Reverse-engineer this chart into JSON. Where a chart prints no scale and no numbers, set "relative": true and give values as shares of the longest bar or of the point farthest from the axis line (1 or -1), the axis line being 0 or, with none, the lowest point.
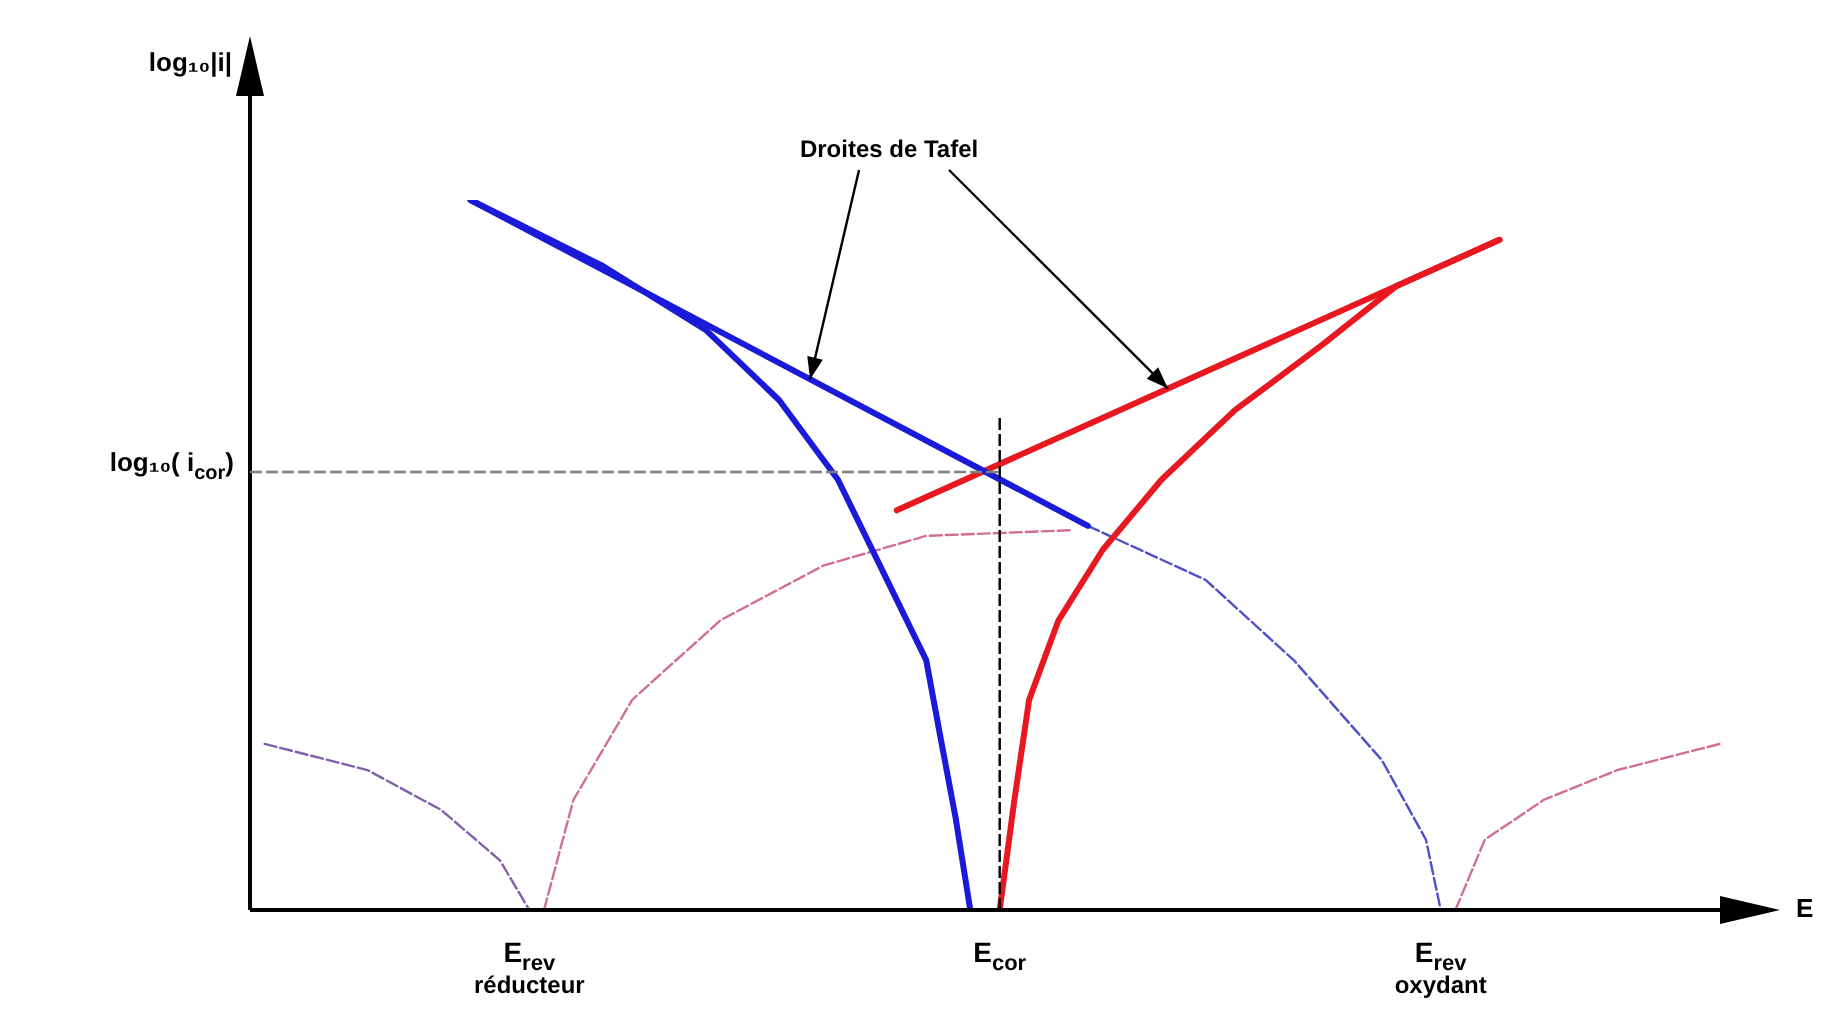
{
  "chart_data": {
    "type": "line",
    "relative": true,
    "categories": [
      null,
      null,
      null,
      null,
      null,
      null,
      null,
      null,
      null,
      null,
      null,
      null,
      null,
      null,
      null,
      null,
      null,
      null,
      null,
      "E$_{rev}$\nréducteur",
      null,
      null,
      null,
      null,
      null,
      null,
      null,
      null,
      null,
      null,
      null,
      null,
      null,
      null,
      null,
      null,
      null,
      null,
      null,
      null,
      null,
      null,
      null,
      null,
      null,
      null,
      null,
      null,
      null,
      null,
      null,
      "E$_{cor}$",
      null,
      null,
      null,
      null,
      null,
      null,
      null,
      null,
      null,
      null,
      null,
      null,
      null,
      null,
      null,
      null,
      null,
      null,
      null,
      null,
      null,
      null,
      null,
      null,
      null,
      null,
      null,
      null,
      null,
      "E$_{rev}$\noxydant",
      null,
      null,
      null,
      null,
      null,
      null,
      null,
      null,
      null,
      null,
      null,
      null,
      null,
      null,
      null,
      null,
      null,
      null,
      null
    ],
    "xlabel": "E",
    "ylabel": "log₁₀|i|",
    "annotations": [
      "Droites de Tafel"
    ],
    "ref_lines": [
      {
        "axis": "y",
        "value": 0.617,
        "label": "log₁₀( i$_{cor}$)",
        "color": "#808080",
        "line_style": "dashed"
      },
      {
        "axis": "x",
        "value": "E$_{cor}$",
        "color": "#000000",
        "line_style": "dashed"
      }
    ],
    "grid": false,
    "legend": false,
    "marker": "none",
    "series": [
      {
        "color": "#1a1ad8",
        "line_style": "solid",
        "values": [
          null,
          null,
          null,
          null,
          null,
          null,
          null,
          null,
          null,
          null,
          null,
          null,
          null,
          null,
          null,
          1.0,
          null,
          null,
          null,
          null,
          null,
          null,
          null,
          null,
          0.907,
          null,
          null,
          null,
          null,
          null,
          null,
          0.817,
          null,
          null,
          null,
          null,
          0.718,
          null,
          null,
          null,
          0.606,
          null,
          null,
          0.479,
          null,
          null,
          0.352,
          0.24,
          0.13,
          0,
          null,
          null,
          null,
          null,
          null,
          null,
          null,
          null,
          null,
          null,
          null,
          null,
          null,
          null,
          null,
          null,
          null,
          null,
          null,
          null,
          null,
          null,
          null,
          null,
          null,
          null,
          null,
          null,
          null,
          null,
          null,
          null,
          null,
          null,
          null,
          null,
          null,
          null,
          null,
          null,
          null,
          null,
          null,
          null,
          null,
          null,
          null,
          null,
          null,
          null,
          null
        ]
      },
      {
        "color": "#1a1ad8",
        "line_style": "solid",
        "values": [
          null,
          null,
          null,
          null,
          null,
          null,
          null,
          null,
          null,
          null,
          null,
          null,
          null,
          null,
          null,
          1.0,
          null,
          null,
          null,
          null,
          null,
          null,
          null,
          null,
          null,
          null,
          null,
          null,
          null,
          null,
          null,
          null,
          null,
          null,
          null,
          null,
          null,
          null,
          null,
          null,
          null,
          null,
          null,
          null,
          null,
          null,
          null,
          null,
          null,
          null,
          null,
          null,
          null,
          null,
          null,
          null,
          null,
          0.541,
          null,
          null,
          null,
          null,
          null,
          null,
          null,
          null,
          null,
          null,
          null,
          null,
          null,
          null,
          null,
          null,
          null,
          null,
          null,
          null,
          null,
          null,
          null,
          null,
          null,
          null,
          null,
          null,
          null,
          null,
          null,
          null,
          null,
          null,
          null,
          null,
          null,
          null,
          null,
          null,
          null,
          null,
          null
        ]
      },
      {
        "color": "#e81820",
        "line_style": "solid",
        "values": [
          null,
          null,
          null,
          null,
          null,
          null,
          null,
          null,
          null,
          null,
          null,
          null,
          null,
          null,
          null,
          null,
          null,
          null,
          null,
          null,
          null,
          null,
          null,
          null,
          null,
          null,
          null,
          null,
          null,
          null,
          null,
          null,
          null,
          null,
          null,
          null,
          null,
          null,
          null,
          null,
          null,
          null,
          null,
          null,
          null,
          null,
          null,
          null,
          null,
          null,
          null,
          0,
          0.155,
          0.296,
          null,
          0.408,
          null,
          null,
          0.507,
          null,
          null,
          null,
          0.606,
          null,
          null,
          null,
          null,
          0.704,
          null,
          null,
          null,
          null,
          null,
          0.797,
          null,
          null,
          null,
          null,
          0.879,
          null,
          null,
          null,
          null,
          null,
          null,
          0.944,
          null,
          null,
          null,
          null,
          null,
          null,
          null,
          null,
          null,
          null,
          null,
          null,
          null,
          null,
          null
        ]
      },
      {
        "color": "#e81820",
        "line_style": "solid",
        "values": [
          null,
          null,
          null,
          null,
          null,
          null,
          null,
          null,
          null,
          null,
          null,
          null,
          null,
          null,
          null,
          null,
          null,
          null,
          null,
          null,
          null,
          null,
          null,
          null,
          null,
          null,
          null,
          null,
          null,
          null,
          null,
          null,
          null,
          null,
          null,
          null,
          null,
          null,
          null,
          null,
          null,
          null,
          null,
          null,
          0.563,
          null,
          null,
          null,
          null,
          null,
          null,
          null,
          null,
          null,
          null,
          null,
          null,
          null,
          null,
          null,
          null,
          null,
          null,
          null,
          null,
          null,
          null,
          null,
          null,
          null,
          null,
          null,
          null,
          null,
          null,
          null,
          null,
          null,
          null,
          null,
          null,
          null,
          null,
          null,
          null,
          0.944,
          null,
          null,
          null,
          null,
          null,
          null,
          null,
          null,
          null,
          null,
          null,
          null,
          null,
          null,
          null
        ]
      },
      {
        "color": "#8060a8",
        "line_style": "dashed",
        "values": [
          null,
          0.234,
          null,
          null,
          null,
          null,
          null,
          null,
          0.197,
          null,
          null,
          null,
          null,
          0.141,
          null,
          null,
          null,
          0.07,
          null,
          0,
          null,
          null,
          null,
          null,
          null,
          null,
          null,
          null,
          null,
          null,
          null,
          null,
          null,
          null,
          null,
          null,
          null,
          null,
          null,
          null,
          null,
          null,
          null,
          null,
          null,
          null,
          null,
          null,
          null,
          null,
          null,
          null,
          null,
          null,
          null,
          null,
          null,
          null,
          null,
          null,
          null,
          null,
          null,
          null,
          null,
          null,
          null,
          null,
          null,
          null,
          null,
          null,
          null,
          null,
          null,
          null,
          null,
          null,
          null,
          null,
          null,
          null,
          null,
          null,
          null,
          null,
          null,
          null,
          null,
          null,
          null,
          null,
          null,
          null,
          null,
          null,
          null,
          null,
          null,
          null,
          null
        ]
      },
      {
        "color": "#d07090",
        "line_style": "dashed",
        "values": [
          null,
          null,
          null,
          null,
          null,
          null,
          null,
          null,
          null,
          null,
          null,
          null,
          null,
          null,
          null,
          null,
          null,
          null,
          null,
          null,
          0,
          null,
          0.155,
          null,
          null,
          null,
          0.296,
          null,
          null,
          null,
          null,
          null,
          0.408,
          null,
          null,
          null,
          null,
          null,
          null,
          0.485,
          null,
          null,
          null,
          null,
          null,
          null,
          0.527,
          null,
          null,
          null,
          null,
          null,
          null,
          null,
          null,
          null,
          0.535,
          null,
          null,
          null,
          null,
          null,
          null,
          null,
          null,
          null,
          null,
          null,
          null,
          null,
          null,
          null,
          null,
          null,
          null,
          null,
          null,
          null,
          null,
          null,
          null,
          null,
          null,
          null,
          null,
          null,
          null,
          null,
          null,
          null,
          null,
          null,
          null,
          null,
          null,
          null,
          null,
          null,
          null,
          null,
          null
        ]
      },
      {
        "color": "#5050c8",
        "line_style": "dashed",
        "values": [
          null,
          null,
          null,
          null,
          null,
          null,
          null,
          null,
          null,
          null,
          null,
          null,
          null,
          null,
          null,
          null,
          null,
          null,
          null,
          null,
          null,
          null,
          null,
          null,
          null,
          null,
          null,
          null,
          null,
          null,
          null,
          null,
          null,
          null,
          null,
          null,
          null,
          null,
          null,
          null,
          null,
          null,
          null,
          null,
          null,
          null,
          null,
          null,
          null,
          null,
          null,
          null,
          null,
          null,
          null,
          null,
          null,
          0.541,
          null,
          null,
          null,
          null,
          null,
          null,
          null,
          0.465,
          null,
          null,
          null,
          null,
          null,
          0.352,
          null,
          null,
          null,
          null,
          null,
          0.211,
          null,
          null,
          0.099,
          0,
          null,
          null,
          null,
          null,
          null,
          null,
          null,
          null,
          null,
          null,
          null,
          null,
          null,
          null,
          null,
          null,
          null,
          null,
          null
        ]
      },
      {
        "color": "#d07090",
        "line_style": "dashed",
        "values": [
          null,
          null,
          null,
          null,
          null,
          null,
          null,
          null,
          null,
          null,
          null,
          null,
          null,
          null,
          null,
          null,
          null,
          null,
          null,
          null,
          null,
          null,
          null,
          null,
          null,
          null,
          null,
          null,
          null,
          null,
          null,
          null,
          null,
          null,
          null,
          null,
          null,
          null,
          null,
          null,
          null,
          null,
          null,
          null,
          null,
          null,
          null,
          null,
          null,
          null,
          null,
          null,
          null,
          null,
          null,
          null,
          null,
          null,
          null,
          null,
          null,
          null,
          null,
          null,
          null,
          null,
          null,
          null,
          null,
          null,
          null,
          null,
          null,
          null,
          null,
          null,
          null,
          null,
          null,
          null,
          null,
          null,
          0,
          null,
          0.099,
          null,
          null,
          null,
          0.155,
          null,
          null,
          null,
          null,
          0.197,
          null,
          null,
          null,
          null,
          null,
          null,
          0.234
        ]
      }
    ]
  }
}
